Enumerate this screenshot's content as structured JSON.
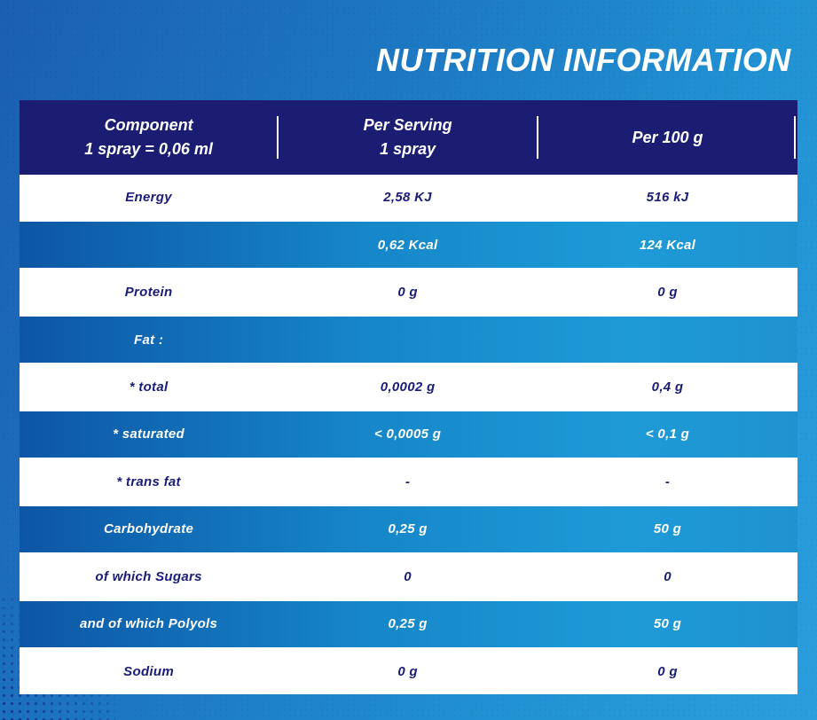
{
  "title": "NUTRITION INFORMATION",
  "colors": {
    "background_start": "#1b5fb2",
    "background_end": "#2b9fdd",
    "header_bg": "#1a1d72",
    "row_blue_start": "#0d56a5",
    "row_blue_end": "#1f93d0",
    "text_navy": "#1a1d78",
    "text_white": "#ffffff"
  },
  "table": {
    "columns": [
      {
        "line1": "Component",
        "line2": "1 spray = 0,06 ml"
      },
      {
        "line1": "Per Serving",
        "line2": "1 spray"
      },
      {
        "line1": "Per 100 g",
        "line2": ""
      }
    ],
    "rows": [
      {
        "component": "Energy",
        "per_serving": "2,58 KJ",
        "per_100g": "516 kJ",
        "variant": "white"
      },
      {
        "component": "",
        "per_serving": "0,62 Kcal",
        "per_100g": "124 Kcal",
        "variant": "blue"
      },
      {
        "component": "Protein",
        "per_serving": "0 g",
        "per_100g": "0 g",
        "variant": "white"
      },
      {
        "component": "Fat :",
        "per_serving": "",
        "per_100g": "",
        "variant": "blue"
      },
      {
        "component": "* total",
        "per_serving": "0,0002 g",
        "per_100g": "0,4 g",
        "variant": "white"
      },
      {
        "component": "* saturated",
        "per_serving": "< 0,0005 g",
        "per_100g": "< 0,1 g",
        "variant": "blue"
      },
      {
        "component": "* trans fat",
        "per_serving": "-",
        "per_100g": "-",
        "variant": "white"
      },
      {
        "component": "Carbohydrate",
        "per_serving": "0,25 g",
        "per_100g": "50 g",
        "variant": "blue"
      },
      {
        "component": "of which Sugars",
        "per_serving": "0",
        "per_100g": "0",
        "variant": "white"
      },
      {
        "component": "and of which Polyols",
        "per_serving": "0,25 g",
        "per_100g": "50 g",
        "variant": "blue"
      },
      {
        "component": "Sodium",
        "per_serving": "0 g",
        "per_100g": "0 g",
        "variant": "white"
      }
    ]
  }
}
